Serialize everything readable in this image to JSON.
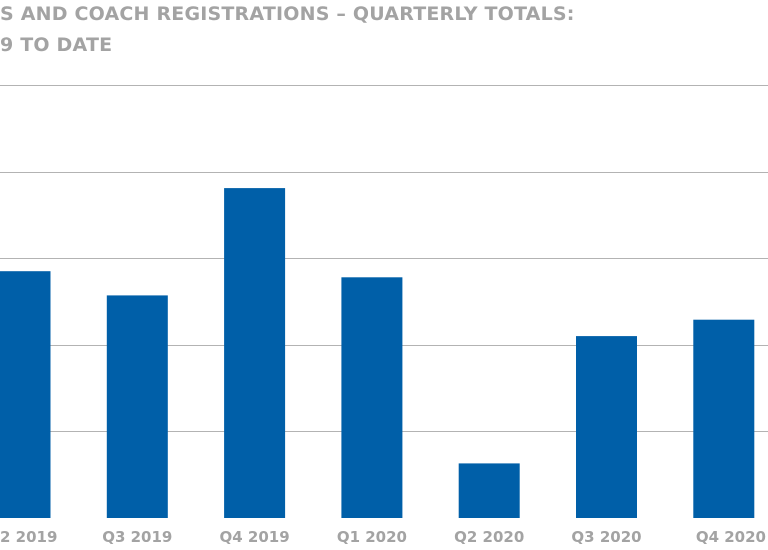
{
  "chart_data": {
    "type": "bar",
    "title_lines": [
      "S AND COACH REGISTRATIONS – QUARTERLY TOTALS:",
      "9 TO DATE"
    ],
    "categories": [
      "2 2019",
      "Q3 2019",
      "Q4 2019",
      "Q1 2020",
      "Q2 2020",
      "Q3 2020",
      "Q4 2020"
    ],
    "values": [
      2.85,
      2.57,
      3.81,
      2.78,
      0.63,
      2.1,
      2.29
    ],
    "ylim": [
      0,
      5
    ],
    "grid": true,
    "bar_color": "#005fa8",
    "grid_color": "#b3b3b3",
    "text_color": "#a3a3a3"
  }
}
